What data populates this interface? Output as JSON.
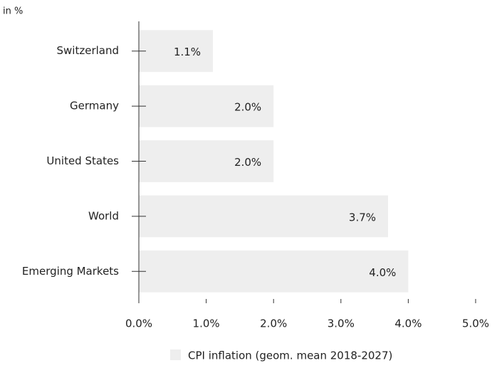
{
  "chart_data": {
    "type": "hbar",
    "unit_label": "in %",
    "categories": [
      "Switzerland",
      "Germany",
      "United States",
      "World",
      "Emerging Markets"
    ],
    "series": [
      {
        "name": "CPI inflation (geom. mean 2018-2027)",
        "color": "#eeeeee",
        "values": [
          1.1,
          2.0,
          2.0,
          3.7,
          4.0
        ],
        "value_labels": [
          "1.1%",
          "2.0%",
          "2.0%",
          "3.7%",
          "4.0%"
        ]
      }
    ],
    "xlim": [
      0,
      5
    ],
    "xticks": [
      {
        "value": 0,
        "label": "0.0%"
      },
      {
        "value": 1,
        "label": "1.0%"
      },
      {
        "value": 2,
        "label": "2.0%"
      },
      {
        "value": 3,
        "label": "3.0%"
      },
      {
        "value": 4,
        "label": "4.0%"
      },
      {
        "value": 5,
        "label": "5.0%"
      }
    ],
    "legend": "bottom"
  }
}
